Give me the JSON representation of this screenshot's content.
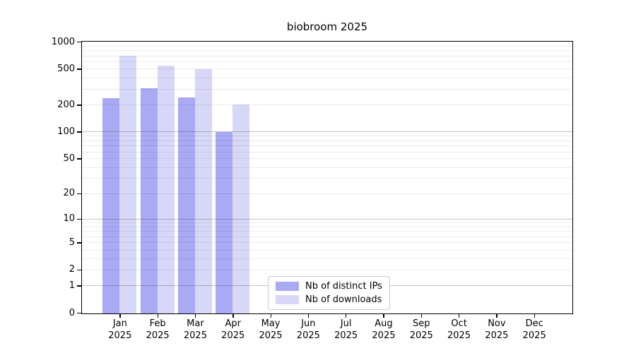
{
  "chart_data": {
    "type": "bar",
    "title": "biobroom 2025",
    "categories": [
      "Jan",
      "Feb",
      "Mar",
      "Apr",
      "May",
      "Jun",
      "Jul",
      "Aug",
      "Sep",
      "Oct",
      "Nov",
      "Dec"
    ],
    "category_year": "2025",
    "series": [
      {
        "name": "Nb of distinct IPs",
        "color": "#a9a9f4",
        "values": [
          240,
          310,
          245,
          100,
          null,
          null,
          null,
          null,
          null,
          null,
          null,
          null
        ]
      },
      {
        "name": "Nb of downloads",
        "color": "#d7d7f8",
        "values": [
          705,
          555,
          505,
          205,
          null,
          null,
          null,
          null,
          null,
          null,
          null,
          null
        ]
      }
    ],
    "yscale": "log1p",
    "ylim": [
      0,
      1000
    ],
    "y_ticks": [
      0,
      1,
      2,
      5,
      10,
      20,
      50,
      100,
      200,
      500,
      1000
    ],
    "grid": {
      "orientation": "horizontal",
      "minor_color": "#eaeaea",
      "major_color": "#bfbfbf",
      "major_at": [
        1,
        10,
        100,
        1000
      ]
    },
    "legend_position": "bottom-center",
    "axis_color": "#000000",
    "background_color": "#ffffff"
  }
}
